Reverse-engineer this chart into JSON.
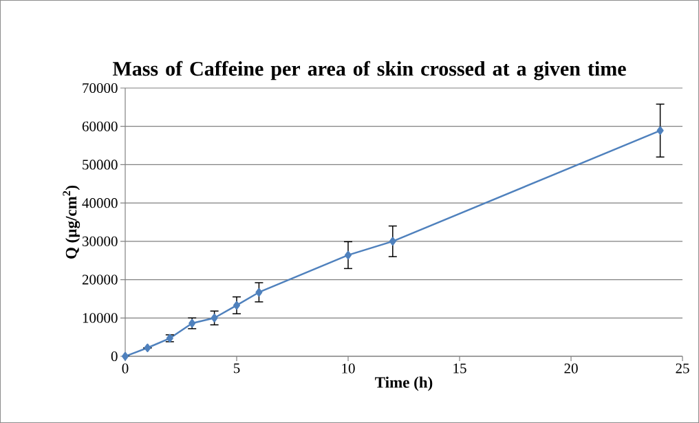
{
  "chart_data": {
    "type": "line",
    "title": "Mass of Caffeine per area of skin crossed at a given time",
    "xlabel": "Time (h)",
    "ylabel": "Q (µg/cm$^{2}$)",
    "x": [
      0,
      1,
      2,
      3,
      4,
      5,
      6,
      10,
      12,
      24
    ],
    "series": [
      {
        "color": "#4f81bd",
        "values": [
          0,
          2200,
          4700,
          8600,
          10000,
          13300,
          16700,
          26400,
          30000,
          58900
        ],
        "errors": [
          null,
          null,
          900,
          1400,
          1800,
          2200,
          2500,
          3500,
          4000,
          6900
        ]
      }
    ],
    "xlim": [
      0,
      25
    ],
    "xticks": [
      0,
      5,
      10,
      15,
      20,
      25
    ],
    "ylim": [
      0,
      70000
    ],
    "yticks": [
      0,
      10000,
      20000,
      30000,
      40000,
      50000,
      60000,
      70000
    ],
    "grid": "y",
    "marker": "diamond",
    "line_style": "solid"
  }
}
